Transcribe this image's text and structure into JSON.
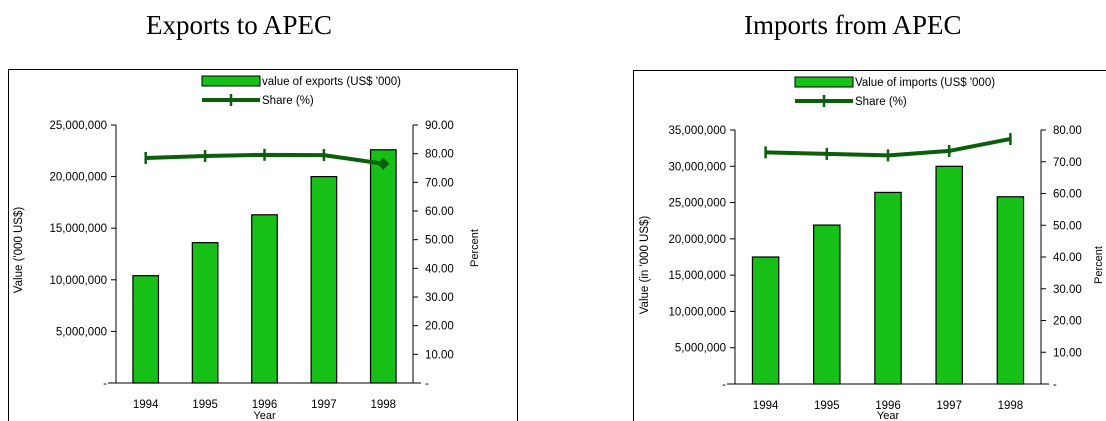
{
  "chart_data": [
    {
      "type": "bar",
      "title": "Exports to APEC",
      "xlabel": "Year",
      "ylabel": "Value ('000 US$)",
      "y2label": "Percent",
      "categories": [
        "1994",
        "1995",
        "1996",
        "1997",
        "1998"
      ],
      "ylim": [
        0,
        25000000
      ],
      "y2lim": [
        0,
        90
      ],
      "yticks": [
        "-",
        "5,000,000",
        "10,000,000",
        "15,000,000",
        "20,000,000",
        "25,000,000"
      ],
      "y2ticks": [
        "-",
        "10.00",
        "20.00",
        "30.00",
        "40.00",
        "50.00",
        "60.00",
        "70.00",
        "80.00",
        "90.00"
      ],
      "series": [
        {
          "name": "value of exports (US$ '000)",
          "kind": "bar",
          "axis": "left",
          "values": [
            10400000,
            13600000,
            16300000,
            20000000,
            22600000
          ]
        },
        {
          "name": "Share (%)",
          "kind": "line",
          "axis": "right",
          "values": [
            78.5,
            79.2,
            79.6,
            79.5,
            76.5
          ]
        }
      ],
      "legend": "top",
      "colors": {
        "bar": "#16c016",
        "line": "#0b5e0b"
      }
    },
    {
      "type": "bar",
      "title": "Imports from APEC",
      "xlabel": "Year",
      "ylabel": "Value (in '000 US$)",
      "y2label": "Percent",
      "categories": [
        "1994",
        "1995",
        "1996",
        "1997",
        "1998"
      ],
      "ylim": [
        0,
        35000000
      ],
      "y2lim": [
        0,
        85
      ],
      "yticks": [
        "-",
        "5,000,000",
        "10,000,000",
        "15,000,000",
        "20,000,000",
        "25,000,000",
        "30,000,000",
        "35,000,000"
      ],
      "y2ticks": [
        "-",
        "10.00",
        "20.00",
        "30.00",
        "40.00",
        "50.00",
        "60.00",
        "70.00",
        "80.00"
      ],
      "series": [
        {
          "name": "Value of imports (US$ '000)",
          "kind": "bar",
          "axis": "left",
          "values": [
            17500000,
            21900000,
            26400000,
            30000000,
            25800000
          ]
        },
        {
          "name": "Share (%)",
          "kind": "line",
          "axis": "right",
          "values": [
            77.5,
            77.0,
            76.5,
            78.0,
            82.0
          ]
        }
      ],
      "legend": "top",
      "colors": {
        "bar": "#16c016",
        "line": "#0b5e0b"
      }
    }
  ]
}
